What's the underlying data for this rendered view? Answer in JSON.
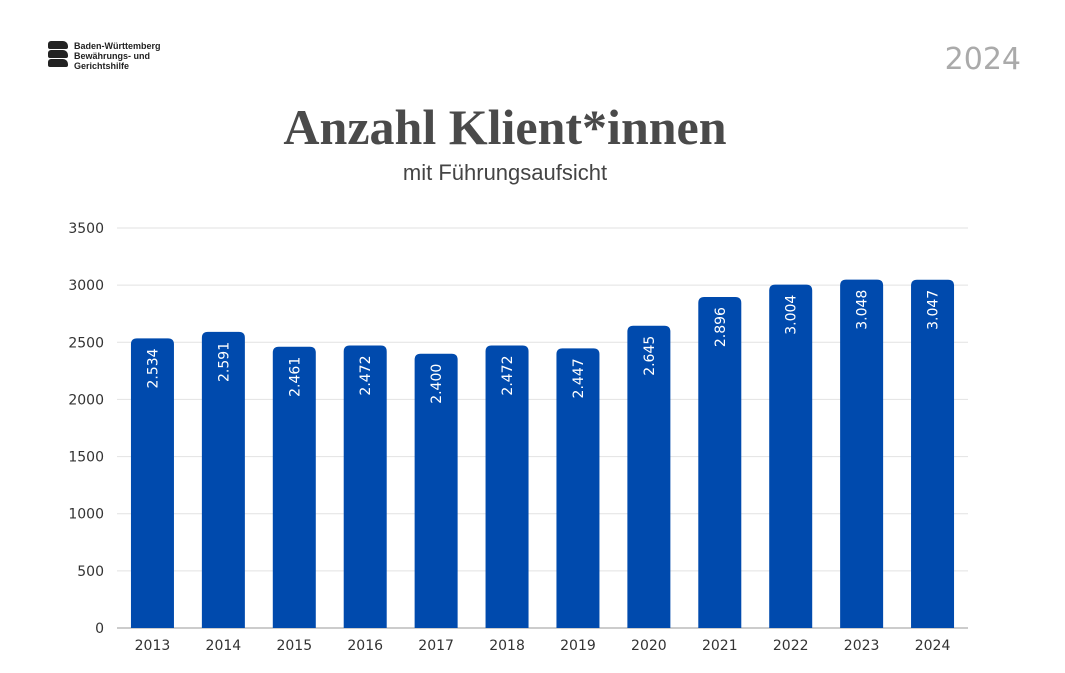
{
  "logo": {
    "lines": [
      "Baden-Württemberg",
      "Bewährungs- und",
      "Gerichtshilfe"
    ]
  },
  "year_badge": "2024",
  "chart_data": {
    "type": "bar",
    "title": "Anzahl Klient*innen",
    "subtitle": "mit Führungsaufsicht",
    "categories": [
      "2013",
      "2014",
      "2015",
      "2016",
      "2017",
      "2018",
      "2019",
      "2020",
      "2021",
      "2022",
      "2023",
      "2024"
    ],
    "values": [
      2534,
      2591,
      2461,
      2472,
      2400,
      2472,
      2447,
      2645,
      2896,
      3004,
      3048,
      3047
    ],
    "data_labels": [
      "2.534",
      "2.591",
      "2.461",
      "2.472",
      "2.400",
      "2.472",
      "2.447",
      "2.645",
      "2.896",
      "3.004",
      "3.048",
      "3.047"
    ],
    "yticks": [
      0,
      500,
      1000,
      1500,
      2000,
      2500,
      3000,
      3500
    ],
    "ylim": [
      0,
      3500
    ],
    "grid": true,
    "bar_color": "#004aad"
  }
}
